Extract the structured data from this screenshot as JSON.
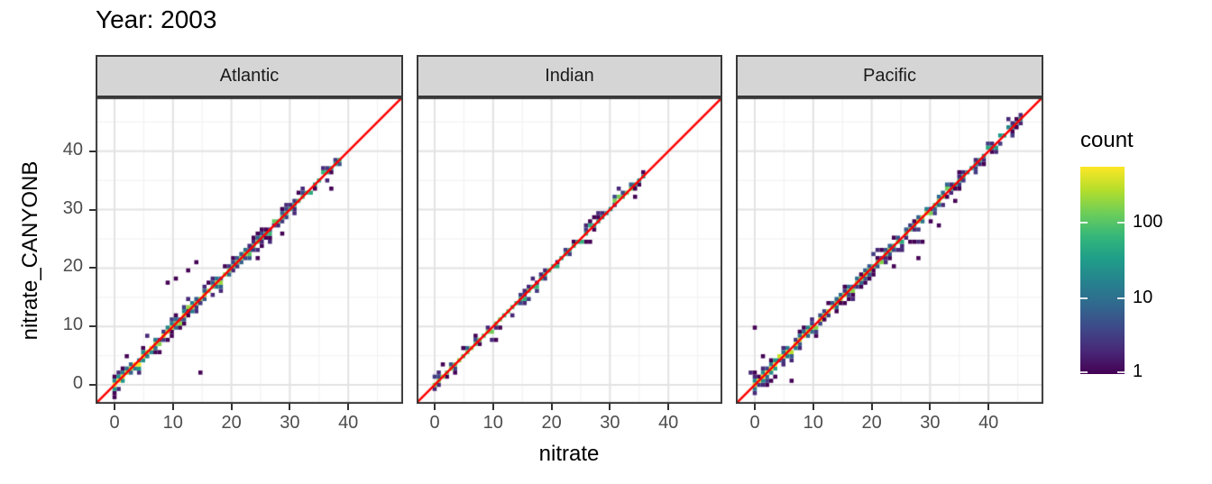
{
  "title": "Year: 2003",
  "facets": [
    {
      "label": "Atlantic"
    },
    {
      "label": "Indian"
    },
    {
      "label": "Pacific"
    }
  ],
  "axes": {
    "x_label": "nitrate",
    "y_label": "nitrate_CANYONB",
    "x_tick_labels": [
      "0",
      "10",
      "20",
      "30",
      "40"
    ],
    "y_tick_labels": [
      "0",
      "10",
      "20",
      "30",
      "40"
    ]
  },
  "legend": {
    "title": "count",
    "tick_labels": [
      "100",
      "10",
      "1"
    ],
    "tick_values": [
      100,
      10,
      1
    ]
  },
  "colors": {
    "background": "#ffffff",
    "panel_background": "#ffffff",
    "panel_border": "#383838",
    "grid_major": "#e3e3e3",
    "grid_minor": "#f1f1f1",
    "strip_fill": "#d5d5d5",
    "strip_border": "#383838",
    "strip_text": "#1a1a1a",
    "axis_text": "#4d4d4d",
    "axis_tick": "#333333",
    "title_text": "#000000",
    "reference_line": "#ff0000",
    "legend_tick": "#ffffff",
    "viridis": [
      "#440154",
      "#482878",
      "#3e4989",
      "#31688e",
      "#26828e",
      "#1f9e89",
      "#35b779",
      "#6ece58",
      "#b5de2b",
      "#fde725"
    ]
  },
  "chart_data": {
    "type": "heatmap",
    "subtype": "2D bin count heatmap (geom_bin2d) of nitrate_CANYONB vs nitrate with y=x reference line, faceted by ocean basin",
    "title": "Year: 2003",
    "xlabel": "nitrate",
    "ylabel": "nitrate_CANYONB",
    "xlim": [
      -3.2,
      49.4
    ],
    "ylim": [
      -3.2,
      49.2
    ],
    "x_ticks": [
      0,
      10,
      20,
      30,
      40
    ],
    "y_ticks": [
      0,
      10,
      20,
      30,
      40
    ],
    "minor_gridlines": [
      5,
      15,
      25,
      35,
      45
    ],
    "grid": true,
    "bin_size": 0.7,
    "color_scale": {
      "palette": "viridis",
      "transform": "log10",
      "min": 1,
      "max": 550,
      "log_decades": 2.74,
      "legend_ticks": [
        1,
        10,
        100
      ],
      "legend_title": "count"
    },
    "reference_line": {
      "equation": "y = x",
      "color": "#ff0000"
    },
    "legend_position": "right",
    "panels": [
      {
        "name": "Atlantic",
        "seed": 3,
        "extent": [
          0,
          38.6
        ],
        "core_count_at_0": 460,
        "decay": 16,
        "base": 8,
        "boosts": [],
        "band": {
          "p1_near": 0.85,
          "p1_far": 0.5,
          "cut": 26,
          "p2_near": 0.38,
          "p2_far": 0.15,
          "spread_p": 0.55
        },
        "outliers": [
          [
            15,
            2.3,
            1
          ],
          [
            9.3,
            17.3,
            1
          ],
          [
            10.6,
            18,
            1
          ],
          [
            12.4,
            19.4,
            1
          ],
          [
            13.7,
            21,
            1
          ],
          [
            5.4,
            8.7,
            2
          ],
          [
            24.8,
            21.9,
            1
          ],
          [
            28.9,
            25.7,
            1
          ],
          [
            36.9,
            33.9,
            1
          ],
          [
            2,
            4.6,
            1
          ],
          [
            0.4,
            2,
            2
          ],
          [
            -0.3,
            1.4,
            1
          ]
        ]
      },
      {
        "name": "Indian",
        "seed": 14,
        "extent": [
          0,
          35.6
        ],
        "core_count_at_0": 150,
        "decay": 20,
        "base": 5,
        "boosts": [
          [
            30.5,
            33.8,
            3.5
          ]
        ],
        "band": {
          "p1_near": 0.42,
          "p1_far": 0.42,
          "cut": 20,
          "p2_near": 0.1,
          "p2_far": 0.08,
          "spread_p": 0.15
        },
        "outliers": [
          [
            10.2,
            7.4,
            1
          ],
          [
            15.6,
            14,
            2
          ],
          [
            15.9,
            15,
            3
          ],
          [
            34.4,
            32.3,
            1
          ],
          [
            26.7,
            24.3,
            1
          ],
          [
            0.1,
            0.2,
            90
          ]
        ]
      },
      {
        "name": "Pacific",
        "seed": 8,
        "extent": [
          0,
          45.6
        ],
        "core_count_at_0": 480,
        "decay": 14,
        "base": 12,
        "boosts": [
          [
            28,
            33,
            3
          ]
        ],
        "band": {
          "p1_near": 0.85,
          "p1_far": 0.6,
          "cut": 26,
          "p2_near": 0.35,
          "p2_far": 0.18,
          "spread_p": 0.6
        },
        "outliers": [
          [
            0,
            9.9,
            1
          ],
          [
            26.3,
            24.4,
            1
          ],
          [
            27,
            24.4,
            1
          ],
          [
            27.7,
            24.4,
            2
          ],
          [
            28.4,
            24.5,
            1
          ],
          [
            31.3,
            27.3,
            1
          ],
          [
            34.5,
            31.5,
            1
          ],
          [
            28,
            21.9,
            1
          ],
          [
            24,
            20.4,
            1
          ],
          [
            20.3,
            22.4,
            3
          ],
          [
            21,
            23,
            2
          ],
          [
            21.6,
            23.1,
            1
          ],
          [
            6.4,
            0.7,
            1
          ],
          [
            1.4,
            4.9,
            1
          ],
          [
            -0.6,
            2.2,
            2
          ]
        ]
      }
    ]
  }
}
